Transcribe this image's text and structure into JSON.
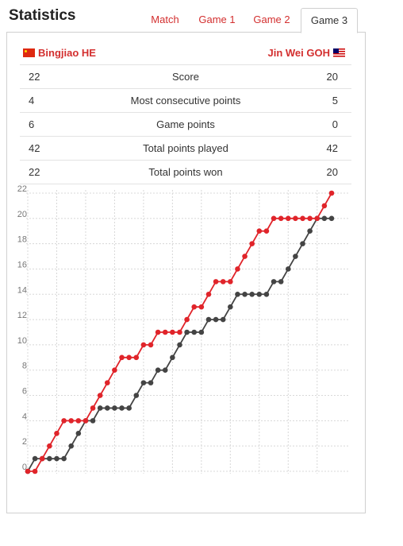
{
  "header": {
    "title": "Statistics"
  },
  "tabs": [
    {
      "label": "Match",
      "active": false
    },
    {
      "label": "Game 1",
      "active": false
    },
    {
      "label": "Game 2",
      "active": false
    },
    {
      "label": "Game 3",
      "active": true
    }
  ],
  "players": {
    "left": "Bingjiao HE",
    "right": "Jin Wei GOH"
  },
  "stats": [
    {
      "left": "22",
      "label": "Score",
      "right": "20"
    },
    {
      "left": "4",
      "label": "Most consecutive points",
      "right": "5"
    },
    {
      "left": "6",
      "label": "Game points",
      "right": "0"
    },
    {
      "left": "42",
      "label": "Total points played",
      "right": "42"
    },
    {
      "left": "22",
      "label": "Total points won",
      "right": "20"
    }
  ],
  "chart_data": {
    "type": "line",
    "x": [
      0,
      1,
      2,
      3,
      4,
      5,
      6,
      7,
      8,
      9,
      10,
      11,
      12,
      13,
      14,
      15,
      16,
      17,
      18,
      19,
      20,
      21,
      22,
      23,
      24,
      25,
      26,
      27,
      28,
      29,
      30,
      31,
      32,
      33,
      34,
      35,
      36,
      37,
      38,
      39,
      40,
      41,
      42
    ],
    "y_ticks": [
      0,
      2,
      4,
      6,
      8,
      10,
      12,
      14,
      16,
      18,
      20,
      22
    ],
    "ylim": [
      0,
      22
    ],
    "grid": true,
    "colors": {
      "red": "#e0242a",
      "dark": "#444444"
    },
    "series": [
      {
        "color": "red",
        "values": [
          0,
          0,
          1,
          2,
          3,
          4,
          4,
          4,
          4,
          5,
          6,
          7,
          8,
          9,
          9,
          9,
          10,
          10,
          11,
          11,
          11,
          11,
          12,
          13,
          13,
          14,
          15,
          15,
          15,
          16,
          17,
          18,
          19,
          19,
          20,
          20,
          20,
          20,
          20,
          20,
          20,
          21,
          22
        ]
      },
      {
        "color": "dark",
        "values": [
          0,
          1,
          1,
          1,
          1,
          1,
          2,
          3,
          4,
          4,
          5,
          5,
          5,
          5,
          5,
          6,
          7,
          7,
          8,
          8,
          9,
          10,
          11,
          11,
          11,
          12,
          12,
          12,
          13,
          14,
          14,
          14,
          14,
          14,
          15,
          15,
          16,
          17,
          18,
          19,
          20,
          20,
          20
        ]
      }
    ]
  }
}
